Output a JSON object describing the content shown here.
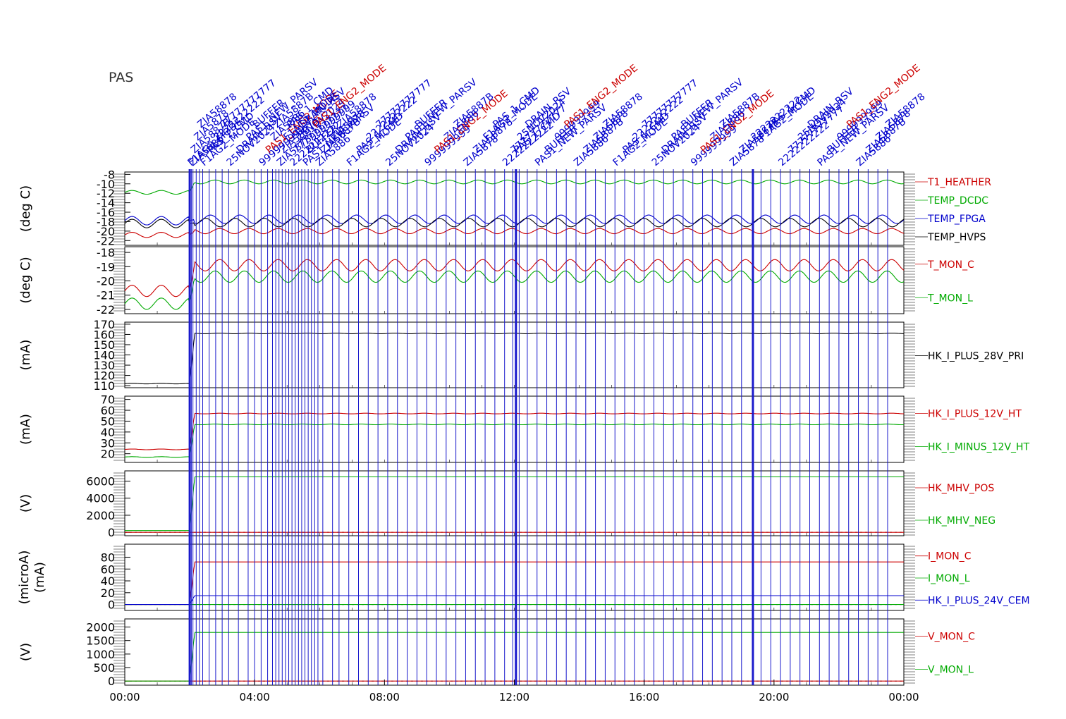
{
  "instrument_label": "PAS",
  "colors": {
    "red": "#cc0000",
    "green": "#00aa00",
    "blue": "#0000cc",
    "black": "#000000",
    "event": "#1a1acc"
  },
  "chart_data": {
    "type": "line",
    "x_axis": {
      "range_hours": [
        0,
        24
      ],
      "tick_labels": [
        "00:00",
        "04:00",
        "08:00",
        "12:00",
        "16:00",
        "20:00",
        "00:00"
      ],
      "tick_hours": [
        0,
        4,
        8,
        12,
        16,
        20,
        24
      ]
    },
    "events": {
      "thick_hours": [
        2.0,
        12.05,
        19.35
      ],
      "thin_hours": [
        2.05,
        2.1,
        2.2,
        2.3,
        2.4,
        2.6,
        2.8,
        3.0,
        3.2,
        3.5,
        3.8,
        4.0,
        4.2,
        4.4,
        4.55,
        4.65,
        4.75,
        4.85,
        4.95,
        5.05,
        5.15,
        5.25,
        5.35,
        5.45,
        5.55,
        5.65,
        5.75,
        5.85,
        5.95,
        6.1,
        6.4,
        6.6,
        6.9,
        7.2,
        7.5,
        7.8,
        8.1,
        8.4,
        8.7,
        9.0,
        9.3,
        9.6,
        9.9,
        10.2,
        10.5,
        10.8,
        11.1,
        11.4,
        11.7,
        11.95,
        12.15,
        12.4,
        12.7,
        13.0,
        13.3,
        13.6,
        13.9,
        14.2,
        14.5,
        14.8,
        15.1,
        15.4,
        15.7,
        16.0,
        16.3,
        16.6,
        16.9,
        17.2,
        17.5,
        17.8,
        18.1,
        18.4,
        18.7,
        19.0,
        19.6,
        19.9,
        20.2,
        20.5,
        20.8,
        21.1,
        21.4,
        21.7,
        22.0,
        22.3,
        22.6,
        22.9,
        23.2,
        23.5
      ],
      "label_rows": [
        {
          "text": "ZIA5886",
          "color": "blue"
        },
        {
          "text": "ZIA5887B",
          "color": "blue"
        },
        {
          "text": "ZIA5878",
          "color": "blue"
        },
        {
          "text": "ZIA58878",
          "color": "blue"
        },
        {
          "text": "F1AG2_MODE",
          "color": "blue"
        },
        {
          "text": "PAS_1_CMD",
          "color": "blue"
        },
        {
          "text": "2222222222",
          "color": "blue"
        },
        {
          "text": "77777777777",
          "color": "blue"
        },
        {
          "text": "25NOV2024",
          "color": "blue"
        },
        {
          "text": "DRAIN_RSV",
          "color": "blue"
        },
        {
          "text": "PAS1_NEW_PARSV",
          "color": "blue"
        },
        {
          "text": "BUFFER",
          "color": "blue"
        },
        {
          "text": "999999999",
          "color": "blue"
        },
        {
          "text": "PAS1_ENG2_MODE",
          "color": "red"
        }
      ]
    },
    "panels": [
      {
        "ylabel": "(deg C)",
        "ylim": [
          -23,
          -7.5
        ],
        "ticks": [
          -8,
          -10,
          -12,
          -14,
          -16,
          -18,
          -20,
          -22
        ],
        "tick_labels": [
          "-8",
          "-10",
          "-12",
          "-14",
          "-16",
          "-18",
          "-20",
          "-22"
        ],
        "dashed_zero": false,
        "series": [
          {
            "name": "T1_HEATHER",
            "color": "red",
            "before": -20.8,
            "after": -20.0,
            "amp": 0.55
          },
          {
            "name": "TEMP_DCDC",
            "color": "green",
            "before": -11.8,
            "after": -9.6,
            "amp": 0.4
          },
          {
            "name": "TEMP_FPGA",
            "color": "blue",
            "before": -17.8,
            "after": -17.5,
            "amp": 0.9
          },
          {
            "name": "TEMP_HVPS",
            "color": "black",
            "before": -18.4,
            "after": -18.2,
            "amp": 0.9
          }
        ]
      },
      {
        "ylabel": "(deg C)",
        "ylim": [
          -22.3,
          -17.6
        ],
        "ticks": [
          -18,
          -19,
          -20,
          -21,
          -22
        ],
        "tick_labels": [
          "-18",
          "-19",
          "-20",
          "-21",
          "-22"
        ],
        "dashed_zero": false,
        "series": [
          {
            "name": "T_MON_C",
            "color": "red",
            "before": -20.7,
            "after": -18.9,
            "amp": 0.4
          },
          {
            "name": "T_MON_L",
            "color": "green",
            "before": -21.6,
            "after": -19.7,
            "amp": 0.4
          }
        ]
      },
      {
        "ylabel": "(mA)",
        "ylim": [
          108,
          172
        ],
        "ticks": [
          110,
          120,
          130,
          140,
          150,
          160,
          170
        ],
        "tick_labels": [
          "110",
          "120",
          "130",
          "140",
          "150",
          "160",
          "170"
        ],
        "dashed_zero": false,
        "series": [
          {
            "name": "HK_I_PLUS_28V_PRI",
            "color": "black",
            "before": 112,
            "after": 161,
            "amp": 0.3
          }
        ]
      },
      {
        "ylabel": "(mA)",
        "ylim": [
          12,
          73
        ],
        "ticks": [
          20,
          30,
          40,
          50,
          60,
          70
        ],
        "tick_labels": [
          "20",
          "30",
          "40",
          "50",
          "60",
          "70"
        ],
        "dashed_zero": false,
        "series": [
          {
            "name": "HK_I_PLUS_12V_HT",
            "color": "red",
            "before": 24,
            "after": 57,
            "amp": 0.3
          },
          {
            "name": "HK_I_MINUS_12V_HT",
            "color": "green",
            "before": 17,
            "after": 47,
            "amp": 0.3
          }
        ]
      },
      {
        "ylabel": "(V)",
        "ylim": [
          -400,
          7200
        ],
        "ticks": [
          0,
          2000,
          4000,
          6000
        ],
        "tick_labels": [
          "0",
          "2000",
          "4000",
          "6000"
        ],
        "dashed_zero": true,
        "series": [
          {
            "name": "HK_MHV_POS",
            "color": "red",
            "before": 0,
            "after": 0,
            "amp": 0
          },
          {
            "name": "HK_MHV_NEG",
            "color": "green",
            "before": 200,
            "after": 6500,
            "amp": 0
          }
        ]
      },
      {
        "ylabel": "(microA)",
        "ylabel2": "(mA)",
        "ylim": [
          -10,
          102
        ],
        "ticks": [
          0,
          20,
          40,
          60,
          80
        ],
        "tick_labels": [
          "0",
          "20",
          "40",
          "60",
          "80"
        ],
        "dashed_zero": true,
        "series": [
          {
            "name": "I_MON_C",
            "color": "red",
            "before": 0,
            "after": 72,
            "amp": 0
          },
          {
            "name": "I_MON_L",
            "color": "green",
            "before": 0,
            "after": 0,
            "amp": 0
          },
          {
            "name": "HK_I_PLUS_24V_CEM",
            "color": "blue",
            "before": 0,
            "after": 15,
            "amp": 0
          }
        ]
      },
      {
        "ylabel": "(V)",
        "ylim": [
          -150,
          2300
        ],
        "ticks": [
          0,
          500,
          1000,
          1500,
          2000
        ],
        "tick_labels": [
          "0",
          "500",
          "1000",
          "1500",
          "2000"
        ],
        "dashed_zero": true,
        "series": [
          {
            "name": "V_MON_C",
            "color": "red",
            "before": 0,
            "after": 0,
            "amp": 0
          },
          {
            "name": "V_MON_L",
            "color": "green",
            "before": 0,
            "after": 1800,
            "amp": 0
          }
        ]
      }
    ]
  }
}
